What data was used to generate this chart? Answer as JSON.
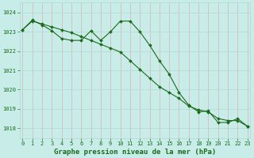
{
  "title": "Graphe pression niveau de la mer (hPa)",
  "background_color": "#c8ede9",
  "grid_color": "#b0d8d2",
  "line_color": "#1a6b1a",
  "marker_color": "#1a6b1a",
  "series1": {
    "x": [
      0,
      1,
      2,
      3,
      4,
      5,
      6,
      7,
      8,
      9,
      10,
      11,
      12,
      13,
      14,
      15,
      16,
      17,
      18,
      19,
      20,
      21,
      22,
      23
    ],
    "y": [
      1023.1,
      1023.6,
      1023.35,
      1023.05,
      1022.65,
      1022.55,
      1022.55,
      1023.05,
      1022.55,
      1023.0,
      1023.55,
      1023.55,
      1023.0,
      1022.3,
      1021.5,
      1020.8,
      1019.85,
      1019.2,
      1018.85,
      1018.9,
      1018.3,
      1018.3,
      1018.5,
      1018.1
    ]
  },
  "series2": {
    "x": [
      0,
      1,
      2,
      3,
      4,
      5,
      6,
      7,
      8,
      9,
      10,
      11,
      12,
      13,
      14,
      15,
      16,
      17,
      18,
      19,
      20,
      21,
      22,
      23
    ],
    "y": [
      1023.1,
      1023.55,
      1023.4,
      1023.25,
      1023.1,
      1022.95,
      1022.75,
      1022.55,
      1022.35,
      1022.15,
      1021.95,
      1021.5,
      1021.05,
      1020.6,
      1020.15,
      1019.85,
      1019.55,
      1019.15,
      1018.95,
      1018.85,
      1018.5,
      1018.4,
      1018.4,
      1018.1
    ]
  },
  "ylim": [
    1017.5,
    1024.5
  ],
  "yticks": [
    1018,
    1019,
    1020,
    1021,
    1022,
    1023,
    1024
  ],
  "xticks": [
    0,
    1,
    2,
    3,
    4,
    5,
    6,
    7,
    8,
    9,
    10,
    11,
    12,
    13,
    14,
    15,
    16,
    17,
    18,
    19,
    20,
    21,
    22,
    23
  ],
  "xlim": [
    -0.3,
    23.3
  ],
  "tick_fontsize": 5.0,
  "title_fontsize": 6.5,
  "title_bold": true,
  "linewidth": 0.8,
  "markersize": 2.0
}
